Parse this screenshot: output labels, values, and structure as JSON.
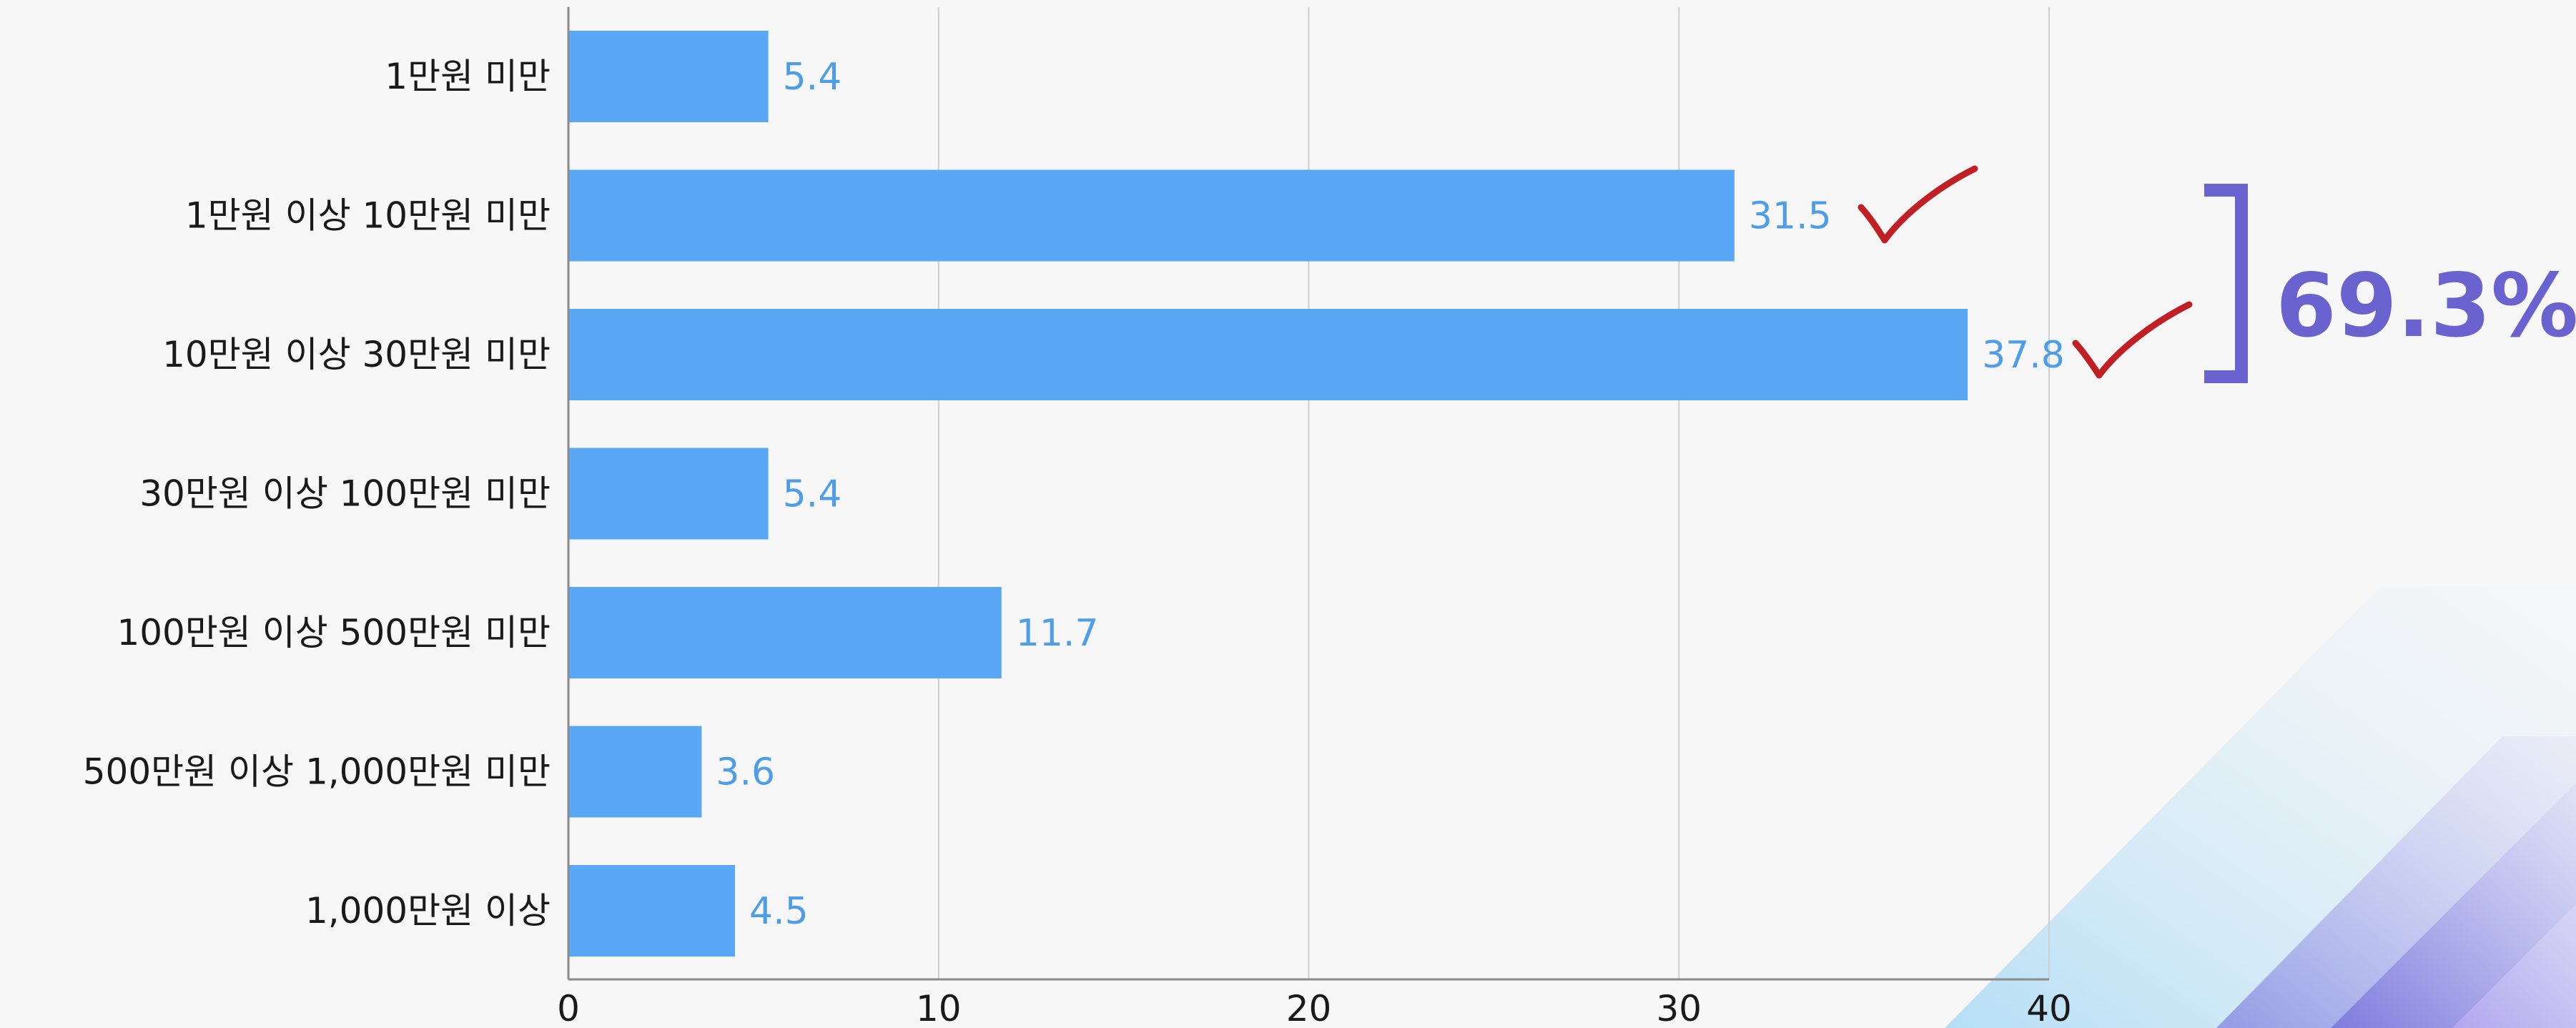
{
  "chart_data": {
    "type": "bar",
    "orientation": "horizontal",
    "title": "",
    "xlabel": "",
    "ylabel": "",
    "categories": [
      "1만원 미만",
      "1만원 이상 10만원 미만",
      "10만원 이상 30만원 미만",
      "30만원 이상 100만원 미만",
      "100만원 이상 500만원 미만",
      "500만원 이상 1,000만원 미만",
      "1,000만원 이상"
    ],
    "values": [
      5.4,
      31.5,
      37.8,
      5.4,
      11.7,
      3.6,
      4.5
    ],
    "data_labels": [
      "5.4",
      "31.5",
      "37.8",
      "5.4",
      "11.7",
      "3.6",
      "4.5"
    ],
    "xlim": [
      0,
      40
    ],
    "xticks": [
      0,
      10,
      20,
      30,
      40
    ],
    "xtick_labels": [
      "0",
      "10",
      "20",
      "30",
      "40"
    ],
    "grid": true,
    "legend": "none",
    "annotations": {
      "checked_categories": [
        1,
        2
      ],
      "bracket_total": "69.3%"
    }
  },
  "colors": {
    "background": "#f7f7f7",
    "bar": "#5aa7f5",
    "data_label": "#4d9de8",
    "grid": "#cfcfcf",
    "axis": "#8a8a8a",
    "checkmark": "#c21f25",
    "bracket": "#6a63cf",
    "callout": "#6a63cf",
    "corner_decoration": [
      "#79c8f4",
      "#7b76dc",
      "#b7a8f0"
    ]
  }
}
